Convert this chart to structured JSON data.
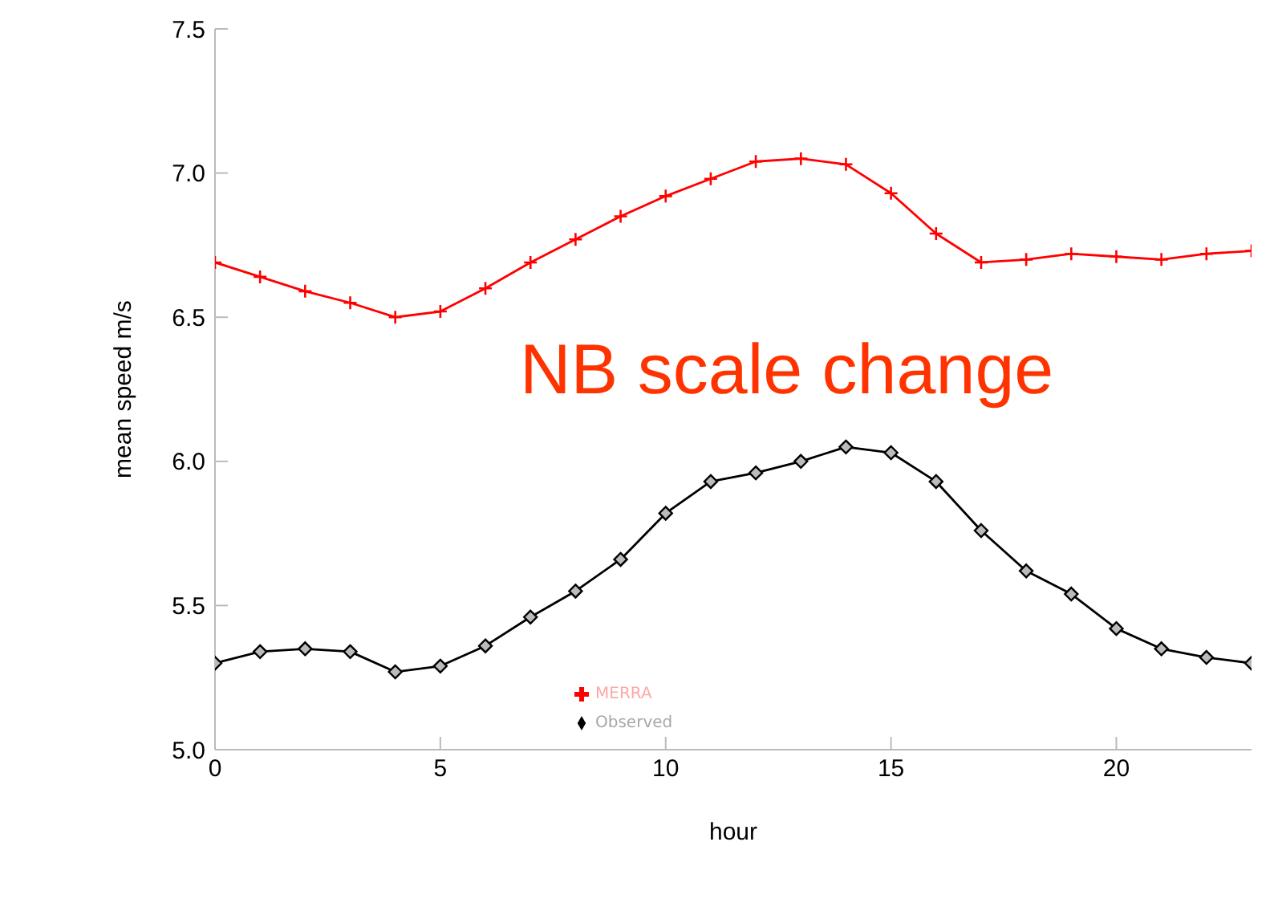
{
  "chart_data": {
    "type": "line",
    "xlabel": "hour",
    "ylabel": "mean speed    m/s",
    "x": [
      0,
      1,
      2,
      3,
      4,
      5,
      6,
      7,
      8,
      9,
      10,
      11,
      12,
      13,
      14,
      15,
      16,
      17,
      18,
      19,
      20,
      21,
      22,
      23
    ],
    "series": [
      {
        "name": "Observed",
        "color": "#000000",
        "marker": "diamond",
        "values": [
          5.3,
          5.34,
          5.35,
          5.34,
          5.27,
          5.29,
          5.36,
          5.46,
          5.55,
          5.66,
          5.82,
          5.93,
          5.96,
          6.0,
          6.05,
          6.03,
          5.93,
          5.76,
          5.62,
          5.54,
          5.42,
          5.35,
          5.32,
          5.3
        ]
      },
      {
        "name": "MERRA",
        "color": "#ff0000",
        "marker": "cross",
        "values": [
          6.69,
          6.64,
          6.59,
          6.55,
          6.5,
          6.52,
          6.6,
          6.69,
          6.77,
          6.85,
          6.92,
          6.98,
          7.04,
          7.05,
          7.03,
          6.93,
          6.79,
          6.69,
          6.7,
          6.72,
          6.71,
          6.7,
          6.72,
          6.73
        ]
      }
    ],
    "xlim": [
      0,
      23
    ],
    "xticks": [
      0,
      5,
      10,
      15,
      20
    ],
    "ylim": [
      5,
      7.5
    ],
    "yticks": [
      {
        "value": 5,
        "label": "5.0"
      },
      {
        "value": 5.5,
        "label": "5.5"
      },
      {
        "value": 6,
        "label": "6.0"
      },
      {
        "value": 6.5,
        "label": "6.5"
      },
      {
        "value": 7,
        "label": "7.0"
      },
      {
        "value": 7.5,
        "label": "7.5"
      }
    ],
    "legend": "bottom",
    "grid": false,
    "annotations": [
      "NB scale change"
    ]
  }
}
